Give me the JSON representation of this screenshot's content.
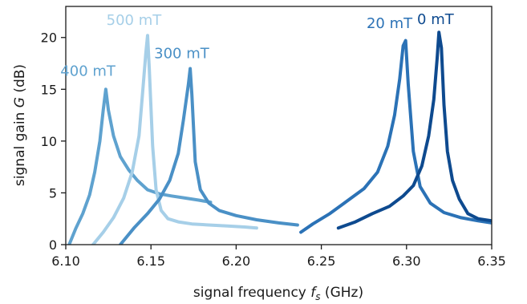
{
  "chart_data": {
    "type": "line",
    "xlabel": "signal frequency f_s (GHz)",
    "xlabel_parts": {
      "main": "signal frequency ",
      "var": "f",
      "sub": "s",
      "unit": " (GHz)"
    },
    "ylabel": "signal gain G (dB)",
    "ylabel_parts": {
      "main": "signal gain ",
      "var": "G",
      "unit": " (dB)"
    },
    "xlim": [
      6.1,
      6.35
    ],
    "ylim": [
      0,
      23
    ],
    "xticks": [
      "6.10",
      "6.15",
      "6.20",
      "6.25",
      "6.30",
      "6.35"
    ],
    "yticks": [
      "0",
      "5",
      "10",
      "15",
      "20"
    ],
    "grid": false,
    "legend": "none",
    "series": [
      {
        "name": "400 mT",
        "color": "#5fa2cf",
        "x": [
          6.102,
          6.106,
          6.11,
          6.114,
          6.117,
          6.12,
          6.122,
          6.1235,
          6.125,
          6.128,
          6.132,
          6.137,
          6.142,
          6.148,
          6.155,
          6.162,
          6.17,
          6.178,
          6.185
        ],
        "y": [
          0,
          1.6,
          3.0,
          4.8,
          7.0,
          10.0,
          13.0,
          15.0,
          13.0,
          10.5,
          8.5,
          7.2,
          6.2,
          5.3,
          4.9,
          4.7,
          4.5,
          4.3,
          4.1
        ]
      },
      {
        "name": "500 mT",
        "color": "#a6cfe8",
        "x": [
          6.116,
          6.122,
          6.128,
          6.134,
          6.139,
          6.143,
          6.145,
          6.147,
          6.148,
          6.149,
          6.151,
          6.153,
          6.156,
          6.16,
          6.166,
          6.174,
          6.184,
          6.195,
          6.205,
          6.212
        ],
        "y": [
          0,
          1.2,
          2.6,
          4.5,
          7.0,
          10.5,
          14.5,
          18.5,
          20.2,
          17.0,
          9.5,
          5.3,
          3.3,
          2.5,
          2.2,
          2.0,
          1.9,
          1.8,
          1.7,
          1.6
        ]
      },
      {
        "name": "300 mT",
        "color": "#4a90c6",
        "x": [
          6.132,
          6.14,
          6.148,
          6.155,
          6.161,
          6.166,
          6.169,
          6.172,
          6.173,
          6.174,
          6.176,
          6.179,
          6.184,
          6.19,
          6.2,
          6.212,
          6.225,
          6.236
        ],
        "y": [
          0,
          1.6,
          3.0,
          4.4,
          6.2,
          8.8,
          12.0,
          15.5,
          17.0,
          14.5,
          8.0,
          5.3,
          4.0,
          3.3,
          2.8,
          2.4,
          2.1,
          1.9
        ]
      },
      {
        "name": "20 mT",
        "color": "#2b72b6",
        "x": [
          6.238,
          6.245,
          6.255,
          6.265,
          6.275,
          6.283,
          6.289,
          6.293,
          6.296,
          6.298,
          6.2995,
          6.301,
          6.304,
          6.308,
          6.314,
          6.322,
          6.332,
          6.342,
          6.35
        ],
        "y": [
          1.2,
          2.0,
          3.0,
          4.2,
          5.4,
          7.0,
          9.5,
          12.5,
          16.0,
          19.2,
          19.7,
          15.5,
          9.0,
          5.6,
          4.0,
          3.1,
          2.6,
          2.3,
          2.1
        ]
      },
      {
        "name": "0 mT",
        "color": "#0e4a8f",
        "x": [
          6.26,
          6.27,
          6.28,
          6.29,
          6.298,
          6.304,
          6.309,
          6.313,
          6.316,
          6.318,
          6.319,
          6.3205,
          6.322,
          6.324,
          6.327,
          6.331,
          6.336,
          6.342,
          6.35
        ],
        "y": [
          1.6,
          2.2,
          3.0,
          3.7,
          4.7,
          5.7,
          7.6,
          10.5,
          14.0,
          18.0,
          20.5,
          19.0,
          13.5,
          9.0,
          6.2,
          4.4,
          3.0,
          2.5,
          2.3
        ]
      }
    ],
    "annotations": [
      {
        "text": "400 mT",
        "x": 6.113,
        "y": 16.3,
        "color": "#5fa2cf"
      },
      {
        "text": "500 mT",
        "x": 6.14,
        "y": 21.2,
        "color": "#a6cfe8"
      },
      {
        "text": "300 mT",
        "x": 6.168,
        "y": 18.0,
        "color": "#4a90c6"
      },
      {
        "text": "20 mT",
        "x": 6.29,
        "y": 20.9,
        "color": "#2b72b6"
      },
      {
        "text": "0 mT",
        "x": 6.317,
        "y": 21.3,
        "color": "#0e4a8f"
      }
    ]
  }
}
